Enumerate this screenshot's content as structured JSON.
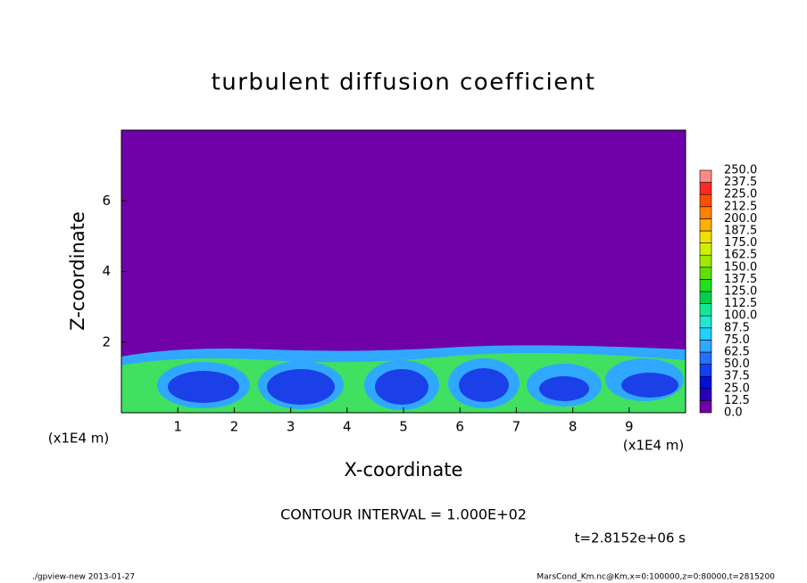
{
  "chart_data": {
    "type": "heatmap",
    "title": "turbulent diffusion coefficient",
    "x_label": "X-coordinate",
    "y_label": "Z-coordinate",
    "x_unit_labels": [
      "(x1E4 m)",
      "(x1E4 m)"
    ],
    "xlim": [
      0,
      10
    ],
    "xticks": [
      1,
      2,
      3,
      4,
      5,
      6,
      7,
      8,
      9
    ],
    "ylim": [
      0,
      8
    ],
    "yticks": [
      2,
      4,
      6
    ],
    "colorbar_levels": [
      {
        "value": 0,
        "label": "0.0"
      },
      12.5,
      {
        "value": 25,
        "label": "25.0"
      },
      37.5,
      {
        "value": 50,
        "label": "50.0"
      },
      62.5,
      {
        "value": 75,
        "label": "75.0"
      },
      87.5,
      {
        "value": 100,
        "label": "100.0"
      },
      112.5,
      {
        "value": 125,
        "label": "125.0"
      },
      137.5,
      {
        "value": 150,
        "label": "150.0"
      },
      162.5,
      {
        "value": 175,
        "label": "175.0"
      },
      187.5,
      {
        "value": 200,
        "label": "200.0"
      },
      212.5,
      {
        "value": 225,
        "label": "225.0"
      },
      237.5,
      {
        "value": 250,
        "label": "250.0"
      }
    ],
    "colorbar_colors": [
      "#7000a8",
      "#2800b8",
      "#0010d8",
      "#1040f0",
      "#2470ff",
      "#30a8ff",
      "#20d0ff",
      "#20e8d0",
      "#10e898",
      "#00d050",
      "#20e020",
      "#60e000",
      "#a0e800",
      "#d0f000",
      "#f0e000",
      "#ffb000",
      "#ff8000",
      "#ff5000",
      "#ff2828",
      "#ff8888"
    ],
    "contour_interval": "CONTOUR INTERVAL = 1.000E+02",
    "time_label": "t=2.8152e+06 s",
    "footer_left": "./gpview-new  2013-01-27",
    "footer_right": "MarsCond_Km.nc@Km,x=0:100000,z=0:80000,t=2815200"
  }
}
